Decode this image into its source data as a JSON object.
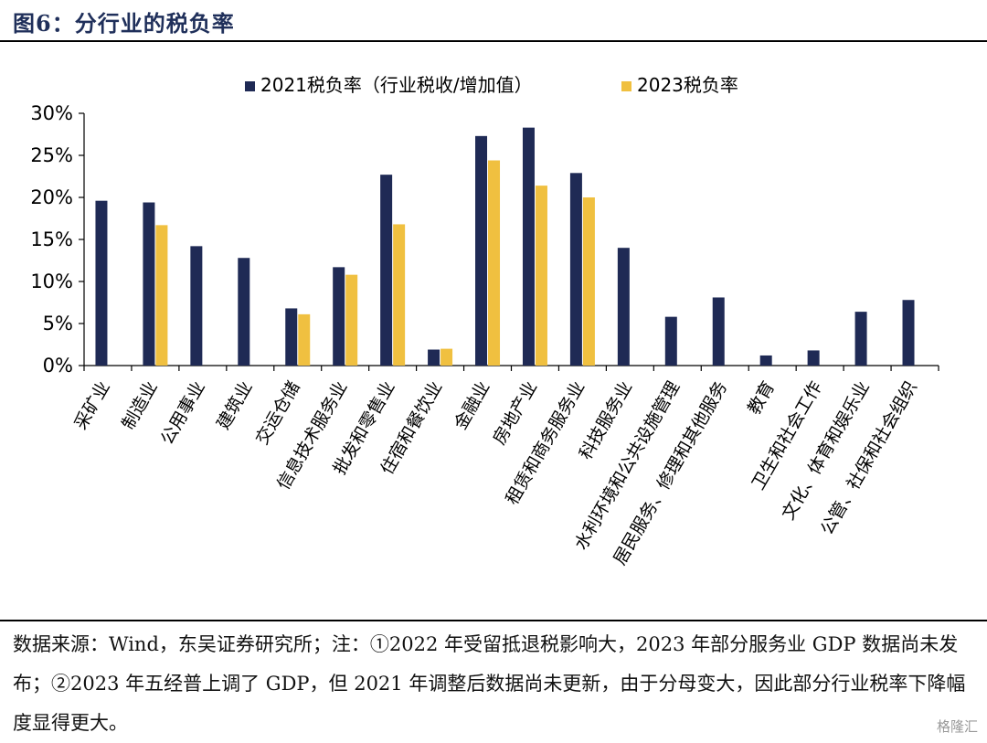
{
  "figure": {
    "title": "图6：分行业的税负率",
    "source_note": "数据来源：Wind，东吴证券研究所；注：①2022 年受留抵退税影响大，2023 年部分服务业 GDP 数据尚未发布；②2023 年五经普上调了 GDP，但 2021 年调整后数据尚未更新，由于分母变大，因此部分行业税率下降幅度显得更大。",
    "watermark": "格隆汇"
  },
  "colors": {
    "series_2021": "#1f2a55",
    "series_2023": "#f0c040",
    "axis": "#000000"
  },
  "chart_data": {
    "type": "bar",
    "categories": [
      "采矿业",
      "制造业",
      "公用事业",
      "建筑业",
      "交运仓储",
      "信息技术服务业",
      "批发和零售业",
      "住宿和餐饮业",
      "金融业",
      "房地产业",
      "租赁和商务服务业",
      "科技服务业",
      "水利环境和公共设施管理",
      "居民服务、修理和其他服务",
      "教育",
      "卫生和社会工作",
      "文化、体育和娱乐业",
      "公管、社保和社会组织"
    ],
    "series": [
      {
        "name": "2021税负率（行业税收/增加值）",
        "values": [
          19.6,
          19.4,
          14.2,
          12.8,
          6.8,
          11.7,
          22.7,
          1.9,
          27.3,
          28.3,
          22.9,
          14.0,
          5.8,
          8.1,
          1.2,
          1.8,
          6.4,
          7.8
        ]
      },
      {
        "name": "2023税负率",
        "values": [
          null,
          16.7,
          null,
          null,
          6.1,
          10.8,
          16.8,
          2.0,
          24.4,
          21.4,
          20.0,
          null,
          null,
          null,
          null,
          null,
          null,
          null
        ]
      }
    ],
    "ylim": [
      0,
      30
    ],
    "yticks": [
      "0%",
      "5%",
      "10%",
      "15%",
      "20%",
      "25%",
      "30%"
    ],
    "legend_position": "top-center",
    "grid": false
  }
}
